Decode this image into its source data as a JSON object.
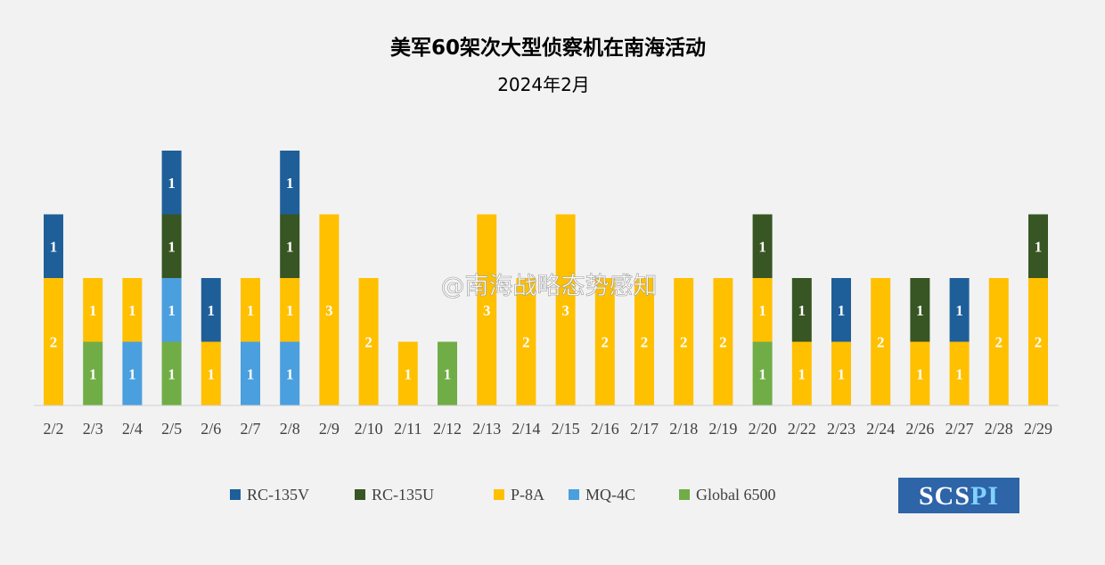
{
  "chart_data": {
    "type": "bar",
    "stacked": true,
    "title": "美军60架次大型侦察机在南海活动",
    "subtitle": "2024年2月",
    "categories": [
      "2/2",
      "2/3",
      "2/4",
      "2/5",
      "2/6",
      "2/7",
      "2/8",
      "2/9",
      "2/10",
      "2/11",
      "2/12",
      "2/13",
      "2/14",
      "2/15",
      "2/16",
      "2/17",
      "2/18",
      "2/19",
      "2/20",
      "2/22",
      "2/23",
      "2/24",
      "2/26",
      "2/27",
      "2/28",
      "2/29"
    ],
    "series": [
      {
        "name": "Global 6500",
        "color": "#70ad47",
        "values": [
          0,
          1,
          0,
          1,
          0,
          0,
          0,
          0,
          0,
          0,
          1,
          0,
          0,
          0,
          0,
          0,
          0,
          0,
          1,
          0,
          0,
          0,
          0,
          0,
          0,
          0
        ]
      },
      {
        "name": "MQ-4C",
        "color": "#4a9fde",
        "values": [
          0,
          0,
          1,
          1,
          0,
          1,
          1,
          0,
          0,
          0,
          0,
          0,
          0,
          0,
          0,
          0,
          0,
          0,
          0,
          0,
          0,
          0,
          0,
          0,
          0,
          0
        ]
      },
      {
        "name": "P-8A",
        "color": "#ffc000",
        "values": [
          2,
          1,
          1,
          0,
          1,
          1,
          1,
          3,
          2,
          1,
          0,
          3,
          2,
          3,
          2,
          2,
          2,
          2,
          1,
          1,
          1,
          2,
          1,
          1,
          2,
          2
        ]
      },
      {
        "name": "RC-135U",
        "color": "#375623",
        "values": [
          0,
          0,
          0,
          1,
          0,
          0,
          1,
          0,
          0,
          0,
          0,
          0,
          0,
          0,
          0,
          0,
          0,
          0,
          1,
          1,
          0,
          0,
          1,
          0,
          0,
          1
        ]
      },
      {
        "name": "RC-135V",
        "color": "#1f5f99",
        "values": [
          1,
          0,
          0,
          1,
          1,
          0,
          1,
          0,
          0,
          0,
          0,
          0,
          0,
          0,
          0,
          0,
          0,
          0,
          0,
          0,
          1,
          0,
          0,
          1,
          0,
          0
        ]
      }
    ],
    "legend_order": [
      "RC-135V",
      "RC-135U",
      "P-8A",
      "MQ-4C",
      "Global 6500"
    ],
    "legend_position": "bottom",
    "ylim": [
      0,
      4
    ],
    "grid": false
  },
  "watermark": "@南海战略态势感知",
  "logo": {
    "part1": "SCS",
    "part2": "PI"
  }
}
